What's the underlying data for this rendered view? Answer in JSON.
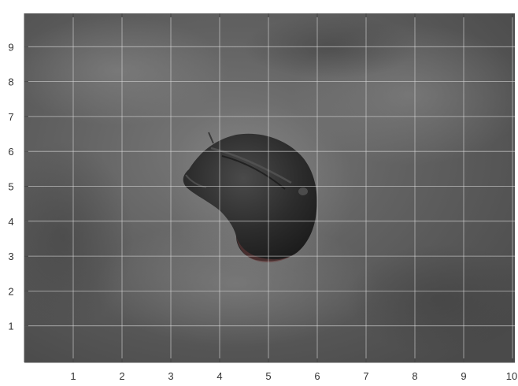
{
  "chart_data": {
    "type": "image",
    "xlabel": "",
    "ylabel": "",
    "xlim": [
      0,
      10
    ],
    "ylim": [
      0,
      10
    ],
    "xticks": [
      1,
      2,
      3,
      4,
      5,
      6,
      7,
      8,
      9,
      10
    ],
    "yticks": [
      1,
      2,
      3,
      4,
      5,
      6,
      7,
      8,
      9
    ],
    "grid": true,
    "colors": {
      "background": "#5d5d5d",
      "object": "#2a2a2a",
      "grid": "#d8d8d8",
      "text": "#333333"
    },
    "image_subject": "dark-object-icon"
  }
}
